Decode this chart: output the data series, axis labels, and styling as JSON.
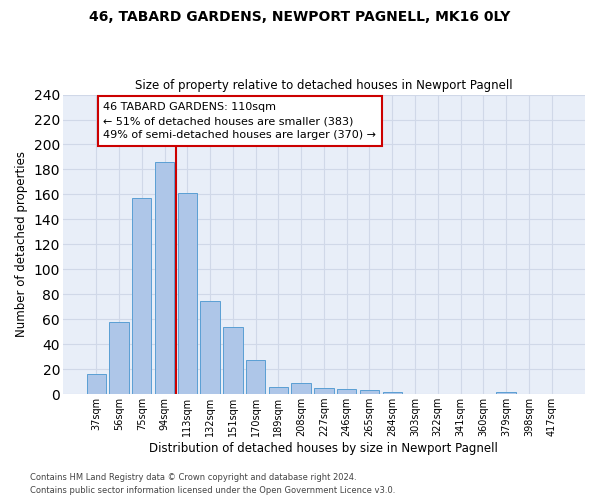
{
  "title": "46, TABARD GARDENS, NEWPORT PAGNELL, MK16 0LY",
  "subtitle": "Size of property relative to detached houses in Newport Pagnell",
  "xlabel": "Distribution of detached houses by size in Newport Pagnell",
  "ylabel": "Number of detached properties",
  "bar_values": [
    16,
    58,
    157,
    186,
    161,
    75,
    54,
    27,
    6,
    9,
    5,
    4,
    3,
    2,
    0,
    0,
    0,
    0,
    2,
    0,
    0
  ],
  "bar_labels": [
    "37sqm",
    "56sqm",
    "75sqm",
    "94sqm",
    "113sqm",
    "132sqm",
    "151sqm",
    "170sqm",
    "189sqm",
    "208sqm",
    "227sqm",
    "246sqm",
    "265sqm",
    "284sqm",
    "303sqm",
    "322sqm",
    "341sqm",
    "360sqm",
    "379sqm",
    "398sqm",
    "417sqm"
  ],
  "bar_color": "#aec6e8",
  "bar_edge_color": "#5a9fd4",
  "vline_color": "#cc0000",
  "annotation_text": "46 TABARD GARDENS: 110sqm\n← 51% of detached houses are smaller (383)\n49% of semi-detached houses are larger (370) →",
  "annotation_box_color": "#ffffff",
  "annotation_box_edge": "#cc0000",
  "ylim": [
    0,
    240
  ],
  "yticks": [
    0,
    20,
    40,
    60,
    80,
    100,
    120,
    140,
    160,
    180,
    200,
    220,
    240
  ],
  "grid_color": "#d0d8e8",
  "background_color": "#e8eef8",
  "footer_line1": "Contains HM Land Registry data © Crown copyright and database right 2024.",
  "footer_line2": "Contains public sector information licensed under the Open Government Licence v3.0."
}
